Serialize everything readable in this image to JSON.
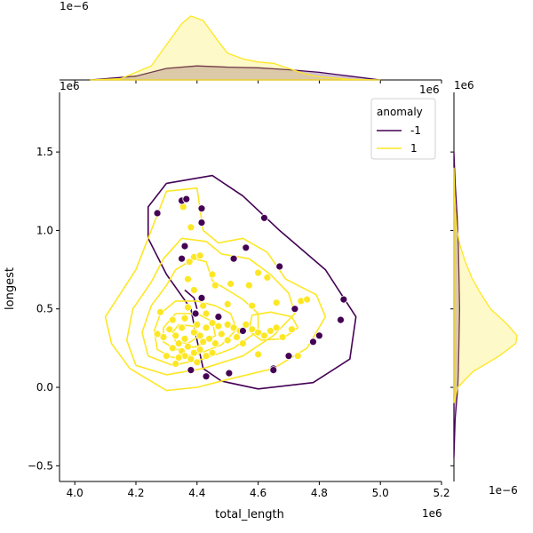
{
  "chart_data": {
    "type": "scatter",
    "xlabel": "total_length",
    "ylabel": "longest",
    "x_offset_label": "1e6",
    "y_offset_label": "1e6",
    "top_marginal_offset_label": "1e−6",
    "right_marginal_offset_label": "1e−6",
    "top_marginal_x_offset_label": "1e6",
    "right_marginal_y_offset_label": "1e6",
    "xlim": [
      3.95,
      5.2
    ],
    "ylim": [
      -0.6,
      1.88
    ],
    "xticks": [
      "4.0",
      "4.2",
      "4.4",
      "4.6",
      "4.8",
      "5.0",
      "5.2"
    ],
    "yticks": [
      "−0.5",
      "0.0",
      "0.5",
      "1.0",
      "1.5"
    ],
    "legend": {
      "title": "anomaly",
      "entries": [
        {
          "label": "-1",
          "color": "#440154"
        },
        {
          "label": "1",
          "color": "#fde725"
        }
      ],
      "placement": "top-right"
    },
    "series": [
      {
        "name": "-1",
        "color": "#440154",
        "points": [
          [
            4.27,
            1.11
          ],
          [
            4.35,
            1.19
          ],
          [
            4.365,
            1.2
          ],
          [
            4.415,
            1.14
          ],
          [
            4.415,
            1.05
          ],
          [
            4.62,
            1.08
          ],
          [
            4.36,
            0.9
          ],
          [
            4.35,
            0.82
          ],
          [
            4.52,
            0.82
          ],
          [
            4.56,
            0.89
          ],
          [
            4.67,
            0.77
          ],
          [
            4.415,
            0.57
          ],
          [
            4.88,
            0.56
          ],
          [
            4.72,
            0.5
          ],
          [
            4.395,
            0.47
          ],
          [
            4.47,
            0.45
          ],
          [
            4.55,
            0.36
          ],
          [
            4.8,
            0.33
          ],
          [
            4.78,
            0.29
          ],
          [
            4.87,
            0.43
          ],
          [
            4.7,
            0.2
          ],
          [
            4.65,
            0.12
          ],
          [
            4.65,
            0.11
          ],
          [
            4.505,
            0.09
          ],
          [
            4.43,
            0.07
          ],
          [
            4.38,
            0.11
          ]
        ]
      },
      {
        "name": "1",
        "color": "#fde725",
        "points": [
          [
            4.355,
            1.15
          ],
          [
            4.38,
            1.02
          ],
          [
            4.39,
            0.83
          ],
          [
            4.41,
            0.84
          ],
          [
            4.375,
            0.8
          ],
          [
            4.37,
            0.69
          ],
          [
            4.46,
            0.65
          ],
          [
            4.39,
            0.62
          ],
          [
            4.45,
            0.72
          ],
          [
            4.51,
            0.66
          ],
          [
            4.6,
            0.73
          ],
          [
            4.63,
            0.7
          ],
          [
            4.57,
            0.65
          ],
          [
            4.42,
            0.52
          ],
          [
            4.37,
            0.51
          ],
          [
            4.36,
            0.44
          ],
          [
            4.32,
            0.43
          ],
          [
            4.28,
            0.48
          ],
          [
            4.5,
            0.53
          ],
          [
            4.58,
            0.52
          ],
          [
            4.66,
            0.54
          ],
          [
            4.74,
            0.55
          ],
          [
            4.76,
            0.56
          ],
          [
            4.43,
            0.47
          ],
          [
            4.4,
            0.4
          ],
          [
            4.35,
            0.38
          ],
          [
            4.31,
            0.37
          ],
          [
            4.29,
            0.32
          ],
          [
            4.27,
            0.34
          ],
          [
            4.33,
            0.33
          ],
          [
            4.36,
            0.31
          ],
          [
            4.39,
            0.35
          ],
          [
            4.41,
            0.33
          ],
          [
            4.43,
            0.38
          ],
          [
            4.45,
            0.41
          ],
          [
            4.47,
            0.39
          ],
          [
            4.5,
            0.4
          ],
          [
            4.52,
            0.38
          ],
          [
            4.54,
            0.36
          ],
          [
            4.56,
            0.4
          ],
          [
            4.58,
            0.37
          ],
          [
            4.6,
            0.35
          ],
          [
            4.62,
            0.33
          ],
          [
            4.64,
            0.36
          ],
          [
            4.66,
            0.38
          ],
          [
            4.68,
            0.32
          ],
          [
            4.71,
            0.37
          ],
          [
            4.73,
            0.2
          ],
          [
            4.6,
            0.21
          ],
          [
            4.34,
            0.28
          ],
          [
            4.32,
            0.25
          ],
          [
            4.35,
            0.23
          ],
          [
            4.37,
            0.26
          ],
          [
            4.39,
            0.22
          ],
          [
            4.41,
            0.24
          ],
          [
            4.36,
            0.2
          ],
          [
            4.34,
            0.19
          ],
          [
            4.38,
            0.18
          ],
          [
            4.4,
            0.16
          ],
          [
            4.33,
            0.15
          ],
          [
            4.42,
            0.29
          ],
          [
            4.44,
            0.31
          ],
          [
            4.46,
            0.28
          ],
          [
            4.48,
            0.34
          ],
          [
            4.5,
            0.3
          ],
          [
            4.53,
            0.32
          ],
          [
            4.55,
            0.28
          ],
          [
            4.3,
            0.2
          ],
          [
            4.43,
            0.2
          ],
          [
            4.45,
            0.22
          ]
        ]
      }
    ],
    "kde_contours": [
      {
        "series": "-1",
        "color": "#440154",
        "paths": [
          [
            [
              4.3,
              1.3
            ],
            [
              4.45,
              1.35
            ],
            [
              4.55,
              1.22
            ],
            [
              4.67,
              1.0
            ],
            [
              4.82,
              0.75
            ],
            [
              4.92,
              0.45
            ],
            [
              4.9,
              0.18
            ],
            [
              4.78,
              0.03
            ],
            [
              4.6,
              -0.01
            ],
            [
              4.48,
              0.04
            ],
            [
              4.42,
              0.12
            ],
            [
              4.4,
              0.3
            ],
            [
              4.38,
              0.5
            ],
            [
              4.3,
              0.72
            ],
            [
              4.24,
              0.95
            ],
            [
              4.24,
              1.15
            ],
            [
              4.3,
              1.3
            ]
          ],
          [
            [
              4.36,
              0.62
            ],
            [
              4.39,
              0.57
            ],
            [
              4.4,
              0.5
            ]
          ]
        ]
      },
      {
        "series": "1",
        "color": "#fde725",
        "paths": [
          [
            [
              4.2,
              0.75
            ],
            [
              4.3,
              1.25
            ],
            [
              4.4,
              1.27
            ],
            [
              4.42,
              1.0
            ],
            [
              4.47,
              0.92
            ],
            [
              4.55,
              0.95
            ],
            [
              4.63,
              0.86
            ],
            [
              4.69,
              0.69
            ],
            [
              4.79,
              0.59
            ],
            [
              4.82,
              0.45
            ],
            [
              4.76,
              0.25
            ],
            [
              4.65,
              0.12
            ],
            [
              4.5,
              0.05
            ],
            [
              4.4,
              0.0
            ],
            [
              4.3,
              -0.02
            ],
            [
              4.18,
              0.12
            ],
            [
              4.12,
              0.28
            ],
            [
              4.1,
              0.45
            ],
            [
              4.15,
              0.6
            ],
            [
              4.2,
              0.75
            ]
          ],
          [
            [
              4.29,
              0.82
            ],
            [
              4.35,
              0.95
            ],
            [
              4.43,
              0.93
            ],
            [
              4.48,
              0.85
            ],
            [
              4.57,
              0.82
            ],
            [
              4.64,
              0.72
            ],
            [
              4.7,
              0.6
            ],
            [
              4.72,
              0.47
            ],
            [
              4.65,
              0.33
            ],
            [
              4.55,
              0.2
            ],
            [
              4.42,
              0.12
            ],
            [
              4.3,
              0.08
            ],
            [
              4.2,
              0.14
            ],
            [
              4.17,
              0.3
            ],
            [
              4.19,
              0.5
            ],
            [
              4.25,
              0.67
            ],
            [
              4.29,
              0.82
            ]
          ],
          [
            [
              4.33,
              0.75
            ],
            [
              4.39,
              0.82
            ],
            [
              4.43,
              0.8
            ],
            [
              4.45,
              0.68
            ],
            [
              4.5,
              0.62
            ],
            [
              4.55,
              0.56
            ],
            [
              4.6,
              0.47
            ],
            [
              4.6,
              0.36
            ],
            [
              4.52,
              0.25
            ],
            [
              4.42,
              0.18
            ],
            [
              4.32,
              0.14
            ],
            [
              4.24,
              0.2
            ],
            [
              4.22,
              0.35
            ],
            [
              4.25,
              0.52
            ],
            [
              4.3,
              0.65
            ],
            [
              4.33,
              0.75
            ]
          ],
          [
            [
              4.33,
              0.55
            ],
            [
              4.4,
              0.55
            ],
            [
              4.46,
              0.52
            ],
            [
              4.51,
              0.47
            ],
            [
              4.53,
              0.37
            ],
            [
              4.48,
              0.27
            ],
            [
              4.4,
              0.21
            ],
            [
              4.32,
              0.19
            ],
            [
              4.27,
              0.24
            ],
            [
              4.26,
              0.36
            ],
            [
              4.28,
              0.47
            ],
            [
              4.33,
              0.55
            ]
          ],
          [
            [
              4.33,
              0.47
            ],
            [
              4.4,
              0.47
            ],
            [
              4.45,
              0.42
            ],
            [
              4.46,
              0.33
            ],
            [
              4.4,
              0.26
            ],
            [
              4.33,
              0.24
            ],
            [
              4.29,
              0.29
            ],
            [
              4.29,
              0.38
            ],
            [
              4.33,
              0.47
            ]
          ],
          [
            [
              4.34,
              0.4
            ],
            [
              4.39,
              0.39
            ],
            [
              4.41,
              0.33
            ],
            [
              4.37,
              0.28
            ],
            [
              4.33,
              0.29
            ],
            [
              4.32,
              0.35
            ],
            [
              4.34,
              0.4
            ]
          ],
          [
            [
              4.58,
              0.46
            ],
            [
              4.64,
              0.48
            ],
            [
              4.71,
              0.45
            ],
            [
              4.73,
              0.38
            ],
            [
              4.68,
              0.31
            ],
            [
              4.61,
              0.3
            ],
            [
              4.57,
              0.36
            ],
            [
              4.58,
              0.46
            ]
          ]
        ]
      }
    ],
    "top_marginal": {
      "xlim": [
        3.95,
        5.2
      ],
      "series": [
        {
          "name": "-1",
          "color": "#440154",
          "x": [
            4.05,
            4.2,
            4.3,
            4.4,
            4.5,
            4.6,
            4.7,
            4.8,
            4.9,
            5.0
          ],
          "density": [
            0.0,
            0.06,
            0.18,
            0.22,
            0.2,
            0.19,
            0.16,
            0.12,
            0.06,
            0.0
          ]
        },
        {
          "name": "1",
          "color": "#fde725",
          "x": [
            4.05,
            4.15,
            4.25,
            4.3,
            4.35,
            4.38,
            4.42,
            4.47,
            4.5,
            4.55,
            4.6,
            4.65,
            4.7,
            4.75,
            4.8,
            4.9,
            5.0
          ],
          "density": [
            0.0,
            0.02,
            0.22,
            0.55,
            0.88,
            1.0,
            0.93,
            0.6,
            0.42,
            0.33,
            0.28,
            0.26,
            0.18,
            0.1,
            0.05,
            0.01,
            0.0
          ]
        }
      ]
    },
    "right_marginal": {
      "ylim": [
        -0.6,
        1.88
      ],
      "series": [
        {
          "name": "-1",
          "color": "#440154",
          "y": [
            -0.45,
            -0.2,
            0.0,
            0.1,
            0.3,
            0.5,
            0.7,
            0.9,
            1.1,
            1.3,
            1.5
          ],
          "density": [
            0.0,
            0.02,
            0.06,
            0.07,
            0.08,
            0.09,
            0.08,
            0.07,
            0.05,
            0.02,
            0.0
          ]
        },
        {
          "name": "1",
          "color": "#fde725",
          "y": [
            -0.1,
            0.0,
            0.1,
            0.2,
            0.28,
            0.33,
            0.4,
            0.5,
            0.6,
            0.7,
            0.8,
            0.9,
            1.0,
            1.1,
            1.25,
            1.4
          ],
          "density": [
            0.0,
            0.06,
            0.3,
            0.72,
            0.98,
            1.0,
            0.85,
            0.58,
            0.42,
            0.28,
            0.18,
            0.1,
            0.05,
            0.03,
            0.01,
            0.0
          ]
        }
      ]
    }
  }
}
